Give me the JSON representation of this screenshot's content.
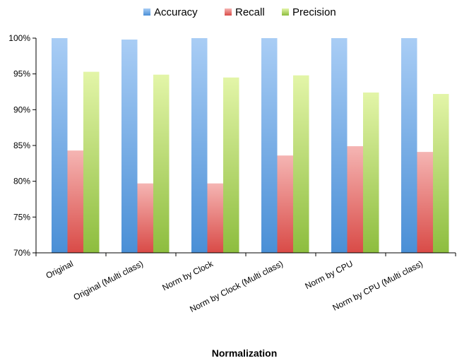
{
  "chart_data": {
    "type": "bar",
    "title": "",
    "xlabel": "Normalization",
    "ylabel": "",
    "ylim": [
      0.7,
      1.0
    ],
    "y_ticks": [
      "70%",
      "75%",
      "80%",
      "85%",
      "90%",
      "95%",
      "100%"
    ],
    "grid": false,
    "legend_position": "top",
    "categories": [
      "Original",
      "Original (Multi class)",
      "Norm by Clock",
      "Norm by Clock (Multi class)",
      "Norm by CPU",
      "Norm by CPU (Multi class)"
    ],
    "series": [
      {
        "name": "Accuracy",
        "color": "#5b9bd5",
        "values": [
          1.0,
          0.998,
          1.0,
          1.0,
          1.0,
          1.0
        ]
      },
      {
        "name": "Recall",
        "color": "#e06666",
        "values": [
          0.843,
          0.797,
          0.797,
          0.836,
          0.849,
          0.841
        ]
      },
      {
        "name": "Precision",
        "color": "#9dc65a",
        "values": [
          0.953,
          0.949,
          0.945,
          0.948,
          0.924,
          0.922
        ]
      }
    ]
  }
}
